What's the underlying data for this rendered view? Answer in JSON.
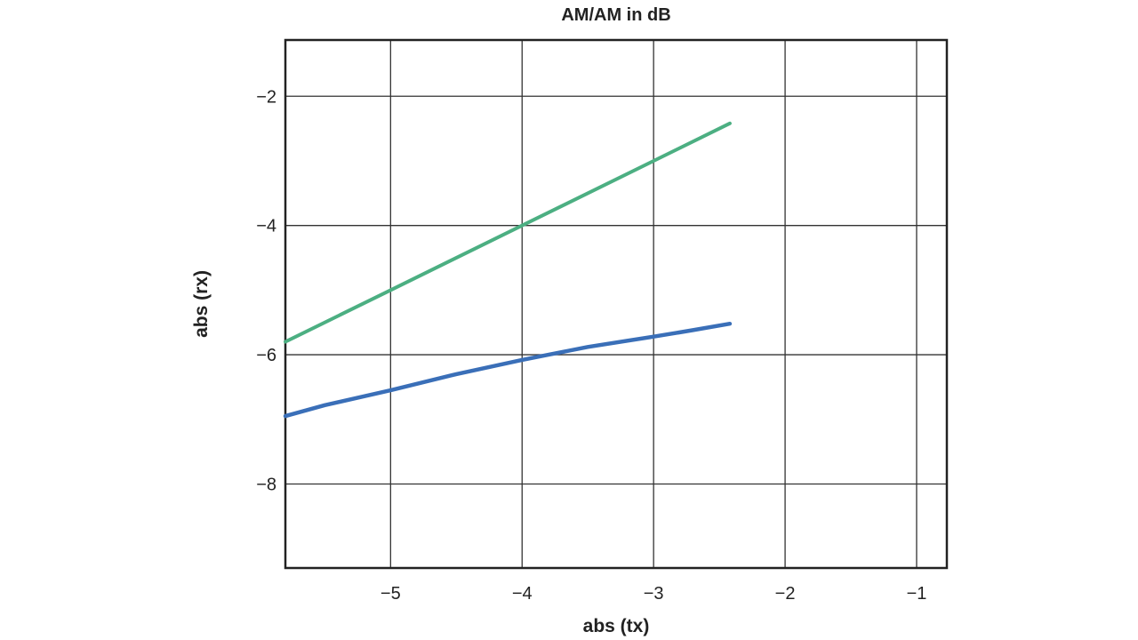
{
  "chart_data": {
    "type": "line",
    "title": "AM/AM in dB",
    "xlabel": "abs (tx)",
    "ylabel": "abs (rx)",
    "xlim": [
      -5.8,
      -0.77
    ],
    "ylim": [
      -9.3,
      -1.13
    ],
    "xticks": [
      -5,
      -4,
      -3,
      -2,
      -1
    ],
    "xtick_labels": [
      "−5",
      "−4",
      "−3",
      "−2",
      "−1"
    ],
    "yticks": [
      -2,
      -4,
      -6,
      -8
    ],
    "ytick_labels": [
      "−2",
      "−4",
      "−6",
      "−8"
    ],
    "grid": true,
    "series": [
      {
        "color": "#4caf82",
        "x": [
          -5.8,
          -5.0,
          -4.0,
          -3.0,
          -2.42
        ],
        "y": [
          -5.8,
          -5.0,
          -4.0,
          -3.0,
          -2.42
        ]
      },
      {
        "color": "#3a6fb8",
        "x": [
          -5.8,
          -5.5,
          -5.0,
          -4.5,
          -4.0,
          -3.8,
          -3.5,
          -3.0,
          -2.7,
          -2.42
        ],
        "y": [
          -6.95,
          -6.78,
          -6.55,
          -6.3,
          -6.08,
          -6.0,
          -5.88,
          -5.72,
          -5.62,
          -5.52
        ]
      }
    ]
  }
}
